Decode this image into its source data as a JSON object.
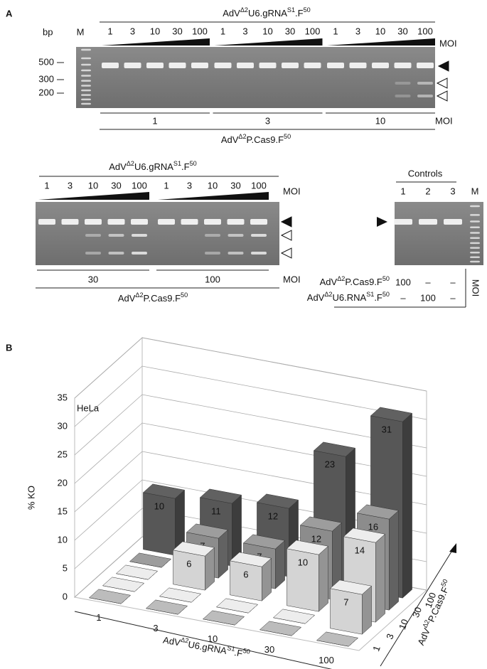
{
  "panel_a": {
    "label": "A",
    "gel_top": {
      "bp_label": "bp",
      "marker": "M",
      "bp_ticks": [
        "500",
        "300",
        "200"
      ],
      "grna_label": [
        "AdV",
        "Δ2",
        "U6.gRNA",
        "S1",
        ".F",
        "50"
      ],
      "grna_mois": [
        "1",
        "3",
        "10",
        "30",
        "100"
      ],
      "moi_label": "MOI",
      "cas9_groups": [
        "1",
        "3",
        "10"
      ],
      "cas9_moi_label": "MOI",
      "cas9_label": [
        "AdV",
        "Δ2",
        "P.Cas9.F",
        "50"
      ]
    },
    "gel_bottom": {
      "grna_label": [
        "AdV",
        "Δ2",
        "U6.gRNA",
        "S1",
        ".F",
        "50"
      ],
      "grna_mois": [
        "1",
        "3",
        "10",
        "30",
        "100"
      ],
      "moi_label": "MOI",
      "cas9_groups": [
        "30",
        "100"
      ],
      "cas9_moi_label": "MOI",
      "cas9_label": [
        "AdV",
        "Δ2",
        "P.Cas9.F",
        "50"
      ]
    },
    "controls": {
      "title": "Controls",
      "lanes": [
        "1",
        "2",
        "3"
      ],
      "marker": "M",
      "rows": [
        {
          "label": [
            "AdV",
            "Δ2",
            "P.Cas9.F",
            "50"
          ],
          "values": [
            "100",
            "–",
            "–"
          ]
        },
        {
          "label": [
            "AdV",
            "Δ2",
            "U6.RNA",
            "S1",
            ".F",
            "50"
          ],
          "values": [
            "–",
            "100",
            "–"
          ]
        }
      ],
      "moi_label": "MOI"
    }
  },
  "chart_data": {
    "type": "bar3d",
    "label": "B",
    "annotation": "HeLa",
    "zlabel": "% KO",
    "x_label": [
      "AdV",
      "Δ2",
      "U6.gRNA",
      "S1",
      ".F",
      "50"
    ],
    "y_label": [
      "AdV",
      "Δ2",
      "P.Cas9.F",
      "50"
    ],
    "categories": [
      "1",
      "3",
      "10",
      "30",
      "100"
    ],
    "rows": [
      "1",
      "3",
      "10",
      "30",
      "100"
    ],
    "values": [
      [
        0,
        0,
        0,
        0,
        0
      ],
      [
        0,
        0,
        0,
        0,
        7
      ],
      [
        0,
        6,
        6,
        10,
        14
      ],
      [
        0,
        7,
        7,
        12,
        16
      ],
      [
        10,
        11,
        12,
        23,
        31
      ]
    ],
    "colors": [
      "#a8a8a8",
      "#d4d4d4",
      "#d4d4d4",
      "#8c8c8c",
      "#575757"
    ],
    "zlim": [
      0,
      35
    ],
    "zticks": [
      0,
      5,
      10,
      15,
      20,
      25,
      30,
      35
    ],
    "grid": true
  }
}
